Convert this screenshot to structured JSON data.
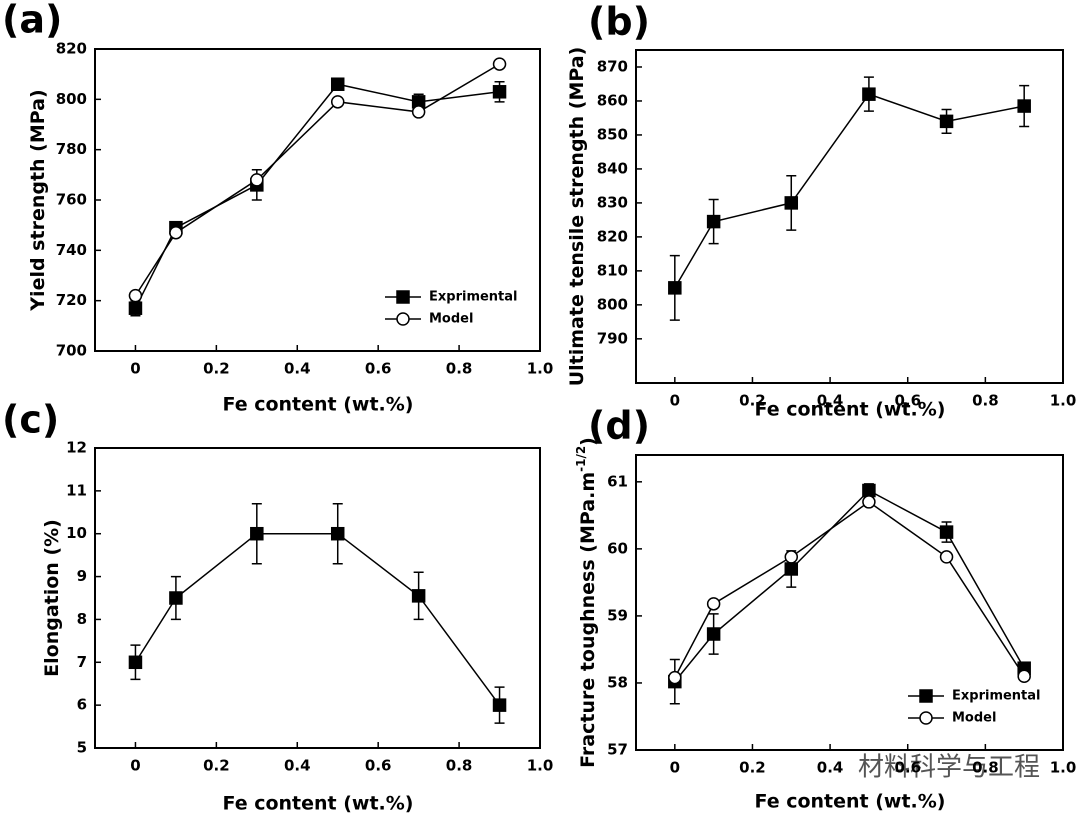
{
  "watermark": "材料科学与工程",
  "chart_data": [
    {
      "type": "line",
      "panel_label": "(a)",
      "x_label": "Fe content (wt.%)",
      "y_label": "Yield strength (MPa)",
      "x": [
        0,
        0.1,
        0.3,
        0.5,
        0.7,
        0.9
      ],
      "xlim": [
        -0.1,
        1.0
      ],
      "xticks": [
        0,
        0.2,
        0.4,
        0.6,
        0.8,
        {
          "value": 1.0,
          "label": "1.0"
        }
      ],
      "ylim": [
        700,
        820
      ],
      "yticks": [
        700,
        720,
        740,
        760,
        780,
        800,
        820
      ],
      "legend": "lower right",
      "series": [
        {
          "name": "Exprimental",
          "color": "#000000",
          "marker": "square",
          "marker_fill": "#000000",
          "values": [
            717,
            749,
            766,
            806,
            799,
            803
          ],
          "errors": [
            3,
            2,
            6,
            2,
            3,
            4
          ]
        },
        {
          "name": "Model",
          "color": "#000000",
          "marker": "circle",
          "marker_fill": "#ffffff",
          "values": [
            722,
            747,
            768,
            799,
            795,
            814
          ]
        }
      ]
    },
    {
      "type": "line",
      "panel_label": "(b)",
      "x_label": "Fe content (wt.%)",
      "y_label": "Ultimate tensile strength (MPa)",
      "x": [
        0,
        0.1,
        0.3,
        0.5,
        0.7,
        0.9
      ],
      "xlim": [
        -0.1,
        1.0
      ],
      "xticks": [
        0,
        0.2,
        0.4,
        0.6,
        0.8,
        {
          "value": 1.0,
          "label": "1.0"
        }
      ],
      "ylim": [
        777,
        875
      ],
      "yticks": [
        790,
        800,
        810,
        820,
        830,
        840,
        850,
        860,
        870
      ],
      "series": [
        {
          "color": "#000000",
          "marker": "square",
          "marker_fill": "#000000",
          "values": [
            805,
            824.5,
            830,
            862,
            854,
            858.5
          ],
          "errors": [
            9.5,
            6.5,
            8,
            5,
            3.5,
            6
          ]
        }
      ]
    },
    {
      "type": "line",
      "panel_label": "(c)",
      "x_label": "Fe content (wt.%)",
      "y_label": "Elongation (%)",
      "x": [
        0,
        0.1,
        0.3,
        0.5,
        0.7,
        0.9
      ],
      "xlim": [
        -0.1,
        1.0
      ],
      "xticks": [
        0,
        0.2,
        0.4,
        0.6,
        0.8,
        {
          "value": 1.0,
          "label": "1.0"
        }
      ],
      "ylim": [
        5,
        12
      ],
      "yticks": [
        5,
        6,
        7,
        8,
        9,
        10,
        11,
        12
      ],
      "series": [
        {
          "color": "#000000",
          "marker": "square",
          "marker_fill": "#000000",
          "values": [
            7,
            8.5,
            10,
            10,
            8.55,
            6
          ],
          "errors": [
            0.4,
            0.5,
            0.7,
            0.7,
            0.55,
            0.42
          ]
        }
      ]
    },
    {
      "type": "line",
      "panel_label": "(d)",
      "x_label": "Fe content (wt.%)",
      "y_label": "Fracture toughness (MPa.m",
      "y_label_sup": "-1/2",
      "y_label_end": ")",
      "x": [
        0,
        0.1,
        0.3,
        0.5,
        0.7,
        0.9
      ],
      "xlim": [
        -0.1,
        1.0
      ],
      "xticks": [
        0,
        0.2,
        0.4,
        0.6,
        0.8,
        {
          "value": 1.0,
          "label": "1.0"
        }
      ],
      "ylim": [
        57,
        61.4
      ],
      "yticks": [
        57,
        58,
        59,
        60,
        61
      ],
      "legend": "lower right",
      "series": [
        {
          "name": "Exprimental",
          "color": "#000000",
          "marker": "square",
          "marker_fill": "#000000",
          "values": [
            58.02,
            58.73,
            59.7,
            60.87,
            60.25,
            58.22
          ],
          "errors": [
            0.33,
            0.3,
            0.27,
            0.1,
            0.15,
            0.05
          ]
        },
        {
          "name": "Model",
          "color": "#000000",
          "marker": "circle",
          "marker_fill": "#ffffff",
          "values": [
            58.08,
            59.18,
            59.88,
            60.7,
            59.88,
            58.1
          ]
        }
      ]
    }
  ]
}
